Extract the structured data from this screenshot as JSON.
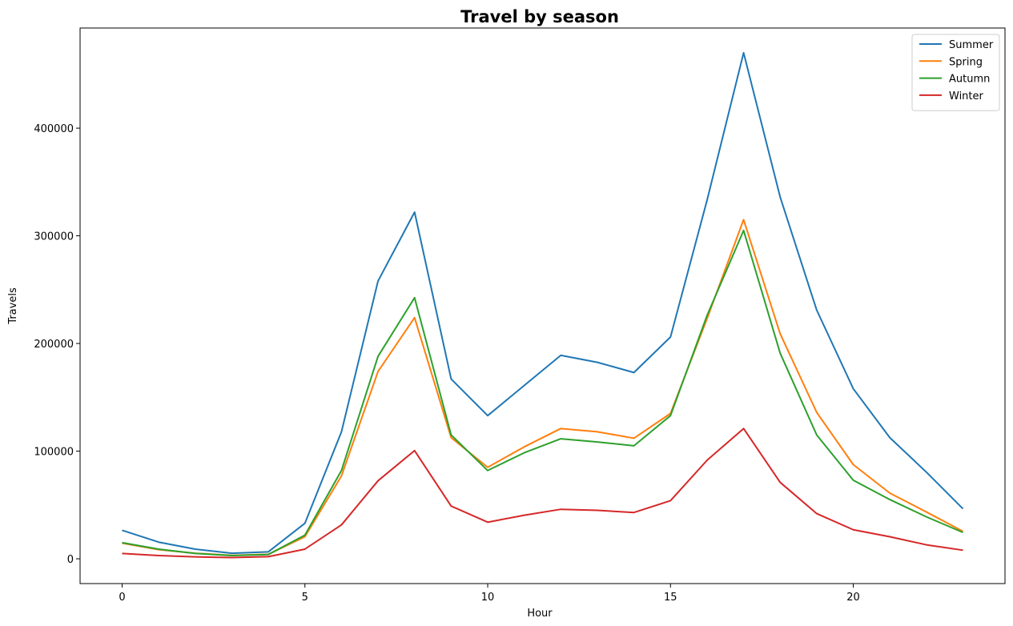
{
  "chart_data": {
    "type": "line",
    "title": "Travel by season",
    "xlabel": "Hour",
    "ylabel": "Travels",
    "xlim": [
      -1.15,
      24.15
    ],
    "ylim": [
      -23000,
      493000
    ],
    "x_ticks": [
      0,
      5,
      10,
      15,
      20
    ],
    "x_tick_labels": [
      "0",
      "5",
      "10",
      "15",
      "20"
    ],
    "y_ticks": [
      0,
      100000,
      200000,
      300000,
      400000
    ],
    "y_tick_labels": [
      "0",
      "100000",
      "200000",
      "300000",
      "400000"
    ],
    "grid": false,
    "legend_position": "top-right",
    "x": [
      0,
      1,
      2,
      3,
      4,
      5,
      6,
      7,
      8,
      9,
      10,
      11,
      12,
      13,
      14,
      15,
      16,
      17,
      18,
      19,
      20,
      21,
      22,
      23
    ],
    "series": [
      {
        "name": "Summer",
        "color": "#1f77b4",
        "values": [
          26500,
          15500,
          9000,
          5200,
          6500,
          33000,
          118000,
          258000,
          322000,
          167000,
          133000,
          161000,
          189000,
          182500,
          173000,
          206000,
          333000,
          470000,
          336000,
          231000,
          158000,
          112500,
          80500,
          46500
        ]
      },
      {
        "name": "Spring",
        "color": "#ff7f0e",
        "values": [
          14500,
          8500,
          5200,
          3200,
          4200,
          20500,
          77000,
          174000,
          224000,
          112500,
          85000,
          104000,
          121000,
          118000,
          112000,
          135000,
          223000,
          315000,
          209000,
          136000,
          87500,
          61000,
          43500,
          25500
        ]
      },
      {
        "name": "Autumn",
        "color": "#2ca02c",
        "values": [
          15000,
          9000,
          5000,
          3000,
          4000,
          22000,
          82000,
          188000,
          242500,
          115000,
          82000,
          98500,
          111500,
          108500,
          105000,
          133000,
          226000,
          305000,
          191000,
          115000,
          73000,
          55000,
          39000,
          24500
        ]
      },
      {
        "name": "Winter",
        "color": "#d62728",
        "values": [
          5000,
          3000,
          1800,
          1200,
          2000,
          9000,
          31500,
          72500,
          100500,
          49000,
          34000,
          40500,
          46000,
          45000,
          43000,
          54000,
          91500,
          121000,
          71000,
          42000,
          27000,
          20500,
          13000,
          8000
        ]
      }
    ]
  }
}
